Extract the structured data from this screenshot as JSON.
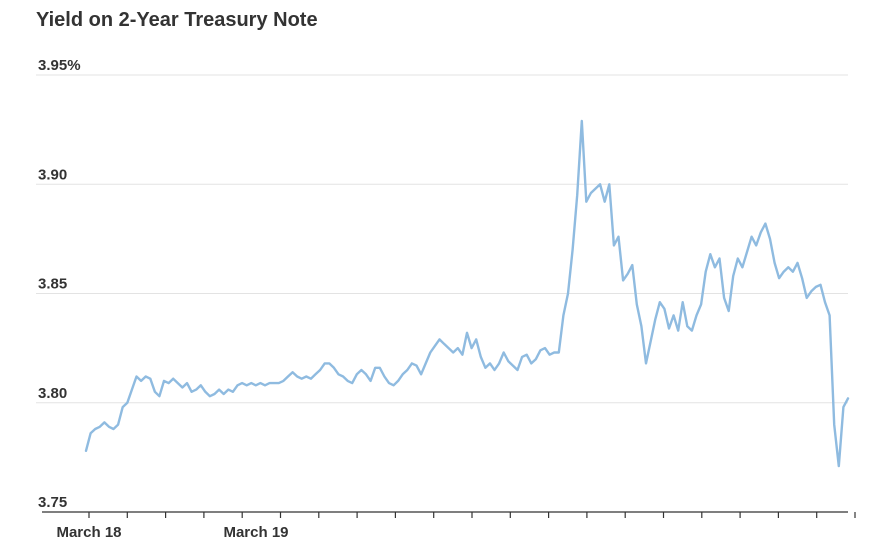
{
  "chart_data": {
    "type": "line",
    "title": "Yield on 2-Year Treasury Note",
    "xlabel": "",
    "ylabel": "",
    "ylim": [
      3.75,
      3.95
    ],
    "y_ticks": [
      {
        "value": 3.95,
        "label": "3.95%"
      },
      {
        "value": 3.9,
        "label": "3.90"
      },
      {
        "value": 3.85,
        "label": "3.85"
      },
      {
        "value": 3.8,
        "label": "3.80"
      },
      {
        "value": 3.75,
        "label": "3.75"
      }
    ],
    "x_ticks": [
      {
        "index": 0,
        "label": "March 18"
      },
      {
        "index": 8,
        "label": "March 19"
      }
    ],
    "x_tick_count": 21,
    "grid": true,
    "line_color": "#8fbbe0",
    "series": [
      {
        "name": "",
        "values": [
          3.778,
          3.786,
          3.788,
          3.789,
          3.791,
          3.789,
          3.788,
          3.79,
          3.798,
          3.8,
          3.806,
          3.812,
          3.81,
          3.812,
          3.811,
          3.805,
          3.803,
          3.81,
          3.809,
          3.811,
          3.809,
          3.807,
          3.809,
          3.805,
          3.806,
          3.808,
          3.805,
          3.803,
          3.804,
          3.806,
          3.804,
          3.806,
          3.805,
          3.808,
          3.809,
          3.808,
          3.809,
          3.808,
          3.809,
          3.808,
          3.809,
          3.809,
          3.809,
          3.81,
          3.812,
          3.814,
          3.812,
          3.811,
          3.812,
          3.811,
          3.813,
          3.815,
          3.818,
          3.818,
          3.816,
          3.813,
          3.812,
          3.81,
          3.809,
          3.813,
          3.815,
          3.813,
          3.81,
          3.816,
          3.816,
          3.812,
          3.809,
          3.808,
          3.81,
          3.813,
          3.815,
          3.818,
          3.817,
          3.813,
          3.818,
          3.823,
          3.826,
          3.829,
          3.827,
          3.825,
          3.823,
          3.825,
          3.822,
          3.832,
          3.825,
          3.829,
          3.821,
          3.816,
          3.818,
          3.815,
          3.818,
          3.823,
          3.819,
          3.817,
          3.815,
          3.821,
          3.822,
          3.818,
          3.82,
          3.824,
          3.825,
          3.822,
          3.823,
          3.823,
          3.84,
          3.85,
          3.87,
          3.895,
          3.929,
          3.892,
          3.896,
          3.898,
          3.9,
          3.892,
          3.9,
          3.872,
          3.876,
          3.856,
          3.859,
          3.863,
          3.845,
          3.835,
          3.818,
          3.828,
          3.838,
          3.846,
          3.843,
          3.834,
          3.84,
          3.833,
          3.846,
          3.835,
          3.833,
          3.84,
          3.845,
          3.86,
          3.868,
          3.862,
          3.866,
          3.848,
          3.842,
          3.858,
          3.866,
          3.862,
          3.869,
          3.876,
          3.872,
          3.878,
          3.882,
          3.875,
          3.864,
          3.857,
          3.86,
          3.862,
          3.86,
          3.864,
          3.857,
          3.848,
          3.851,
          3.853,
          3.854,
          3.846,
          3.84,
          3.79,
          3.771,
          3.798,
          3.802
        ]
      }
    ]
  }
}
